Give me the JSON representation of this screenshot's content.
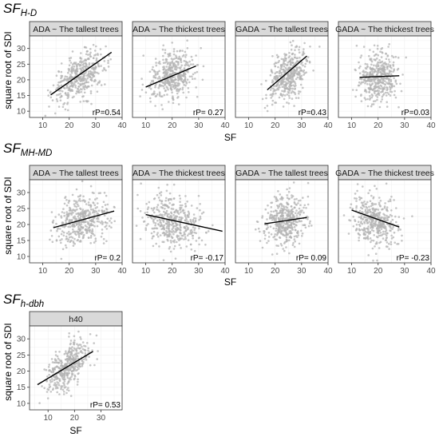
{
  "figure": {
    "ylabel": "square root of SDI",
    "xlabel": "SF"
  },
  "chart_data": [
    {
      "title": "SF",
      "subtitle": "H-D",
      "type": "scatter",
      "xlim": [
        5,
        40
      ],
      "ylim": [
        8,
        34
      ],
      "xticks": [
        10,
        20,
        30,
        40
      ],
      "yticks": [
        10,
        15,
        20,
        25,
        30
      ],
      "xlabel": "SF",
      "ylabel": "square root of SDI",
      "grid": true,
      "panels": [
        {
          "label": "ADA ~ The tallest trees",
          "rp": "rP=0.54",
          "r": 0.54,
          "x_mean": 24,
          "x_sd": 5,
          "y_mean": 21,
          "y_sd": 4,
          "fit": {
            "x": [
              13,
              36
            ],
            "y": [
              15.2,
              28.8
            ]
          }
        },
        {
          "label": "ADA ~ The thickest trees",
          "rp": "rP= 0.27",
          "r": 0.27,
          "x_mean": 20,
          "x_sd": 4.5,
          "y_mean": 21,
          "y_sd": 4,
          "fit": {
            "x": [
              10,
              29
            ],
            "y": [
              17.7,
              24.4
            ]
          }
        },
        {
          "label": "GADA ~ The tallest trees",
          "rp": "rP=0.43",
          "r": 0.43,
          "x_mean": 25,
          "x_sd": 3.5,
          "y_mean": 21.5,
          "y_sd": 4.2,
          "fit": {
            "x": [
              17,
              32
            ],
            "y": [
              16.8,
              27.6
            ]
          }
        },
        {
          "label": "GADA ~ The thickest trees",
          "rp": "rP=0.03",
          "r": 0.03,
          "x_mean": 20,
          "x_sd": 3.5,
          "y_mean": 21,
          "y_sd": 4,
          "fit": {
            "x": [
              13,
              28
            ],
            "y": [
              20.8,
              21.3
            ]
          }
        }
      ]
    },
    {
      "title": "SF",
      "subtitle": "MH-MD",
      "type": "scatter",
      "xlim": [
        5,
        40
      ],
      "ylim": [
        8,
        34
      ],
      "xticks": [
        10,
        20,
        30,
        40
      ],
      "yticks": [
        10,
        15,
        20,
        25,
        30
      ],
      "xlabel": "SF",
      "ylabel": "square root of SDI",
      "grid": true,
      "panels": [
        {
          "label": "ADA ~ The tallest trees",
          "rp": "rP= 0.2",
          "r": 0.2,
          "x_mean": 25,
          "x_sd": 5,
          "y_mean": 21,
          "y_sd": 4,
          "fit": {
            "x": [
              14,
              37
            ],
            "y": [
              19.0,
              24.2
            ]
          }
        },
        {
          "label": "ADA ~ The thickest trees",
          "rp": "rP= -0.17",
          "r": -0.17,
          "x_mean": 20,
          "x_sd": 5.5,
          "y_mean": 20.5,
          "y_sd": 4,
          "fit": {
            "x": [
              10,
              39
            ],
            "y": [
              23.1,
              17.9
            ]
          }
        },
        {
          "label": "GADA ~ The tallest trees",
          "rp": "rP= 0.09",
          "r": 0.09,
          "x_mean": 24,
          "x_sd": 4,
          "y_mean": 21,
          "y_sd": 4,
          "fit": {
            "x": [
              16,
              32
            ],
            "y": [
              20.2,
              22.2
            ]
          }
        },
        {
          "label": "GADA ~ The thickest trees",
          "rp": "rP= -0.23",
          "r": -0.23,
          "x_mean": 19,
          "x_sd": 4,
          "y_mean": 21,
          "y_sd": 4,
          "fit": {
            "x": [
              10,
              28
            ],
            "y": [
              24.5,
              19.2
            ]
          }
        }
      ]
    },
    {
      "title": "SF",
      "subtitle": "h-dbh",
      "type": "scatter",
      "xlim": [
        3,
        38
      ],
      "ylim": [
        8,
        34
      ],
      "xticks": [
        10,
        20,
        30
      ],
      "yticks": [
        10,
        15,
        20,
        25,
        30
      ],
      "xlabel": "SF",
      "ylabel": "square root of SDI",
      "grid": true,
      "panels": [
        {
          "label": "h40",
          "rp": "rP= 0.53",
          "r": 0.53,
          "x_mean": 17,
          "x_sd": 4,
          "y_mean": 21,
          "y_sd": 4,
          "fit": {
            "x": [
              6,
              27
            ],
            "y": [
              15.8,
              26.1
            ]
          }
        }
      ]
    }
  ]
}
